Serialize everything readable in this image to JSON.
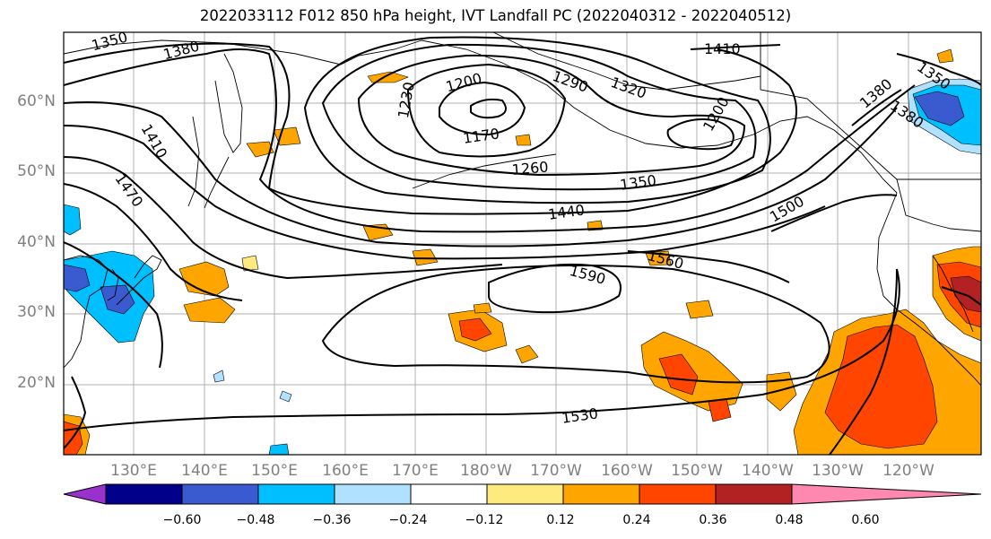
{
  "title": "2022033112 F012 850 hPa height, IVT Landfall PC (2022040312 - 2022040512)",
  "lat_labels": [
    "60°N",
    "50°N",
    "40°N",
    "30°N",
    "20°N"
  ],
  "lon_labels": [
    "130°E",
    "140°E",
    "150°E",
    "160°E",
    "170°E",
    "180°W",
    "170°W",
    "160°W",
    "150°W",
    "140°W",
    "130°W",
    "120°W"
  ],
  "contour_labels": [
    "1350",
    "1380",
    "1410",
    "1440",
    "1470",
    "1500",
    "1530",
    "1560",
    "1590",
    "1170",
    "1200",
    "1230",
    "1260",
    "1290",
    "1320",
    "1350",
    "1380",
    "1410",
    "1440",
    "1500",
    "1560",
    "1590",
    "1530",
    "1350",
    "1380",
    "1200"
  ],
  "colorbar": {
    "ticks": [
      "−0.60",
      "−0.48",
      "−0.36",
      "−0.24",
      "−0.12",
      "0.12",
      "0.24",
      "0.36",
      "0.48",
      "0.60"
    ],
    "colors": [
      "#9932cc",
      "#00008b",
      "#3a5bcf",
      "#00bfff",
      "#b0e2ff",
      "#ffffff",
      "#ffea80",
      "#ffa500",
      "#ff4500",
      "#b22222",
      "#ff88b0"
    ]
  }
}
